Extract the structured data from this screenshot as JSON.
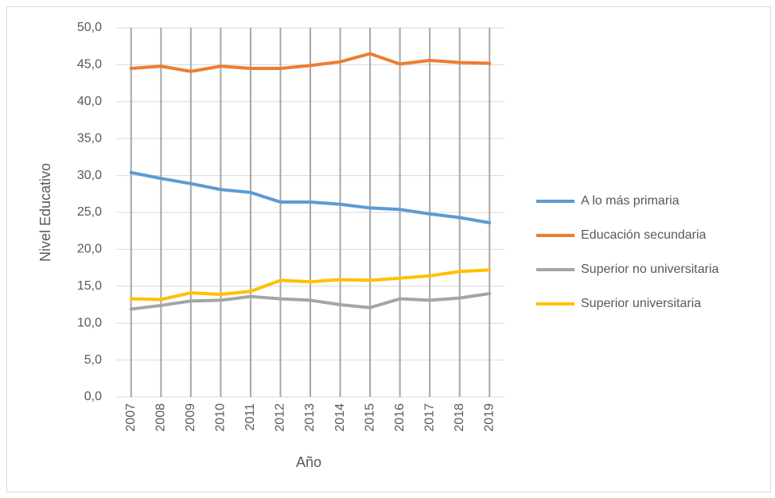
{
  "chart_data": {
    "type": "line",
    "x_label": "Año",
    "y_label": "Nivel Educativo",
    "categories": [
      "2007",
      "2008",
      "2009",
      "2010",
      "2011",
      "2012",
      "2013",
      "2014",
      "2015",
      "2016",
      "2017",
      "2018",
      "2019"
    ],
    "series": [
      {
        "name": "A lo más primaria",
        "color": "#5b9bd5",
        "values": [
          30.4,
          29.6,
          28.9,
          28.1,
          27.7,
          26.4,
          26.4,
          26.1,
          25.6,
          25.4,
          24.8,
          24.3,
          23.6
        ]
      },
      {
        "name": "Educación secundaria",
        "color": "#ed7d31",
        "values": [
          44.5,
          44.8,
          44.1,
          44.8,
          44.5,
          44.5,
          44.9,
          45.4,
          46.5,
          45.1,
          45.6,
          45.3,
          45.2
        ]
      },
      {
        "name": "Superior no universitaria",
        "color": "#a5a5a5",
        "values": [
          11.9,
          12.4,
          13.0,
          13.1,
          13.6,
          13.3,
          13.1,
          12.5,
          12.1,
          13.3,
          13.1,
          13.4,
          14.0
        ]
      },
      {
        "name": "Superior universitaria",
        "color": "#ffc000",
        "values": [
          13.3,
          13.2,
          14.1,
          13.9,
          14.3,
          15.8,
          15.6,
          15.9,
          15.8,
          16.1,
          16.4,
          17.0,
          17.2
        ]
      }
    ],
    "ylim": [
      0,
      50
    ],
    "yticks": [
      {
        "value": 0,
        "label": "0,0"
      },
      {
        "value": 5,
        "label": "5,0"
      },
      {
        "value": 10,
        "label": "10,0"
      },
      {
        "value": 15,
        "label": "15,0"
      },
      {
        "value": 20,
        "label": "20,0"
      },
      {
        "value": 25,
        "label": "25,0"
      },
      {
        "value": 30,
        "label": "30,0"
      },
      {
        "value": 35,
        "label": "35,0"
      },
      {
        "value": 40,
        "label": "40,0"
      },
      {
        "value": 45,
        "label": "45,0"
      },
      {
        "value": 50,
        "label": "50,0"
      }
    ],
    "grid": true,
    "legend": "right"
  }
}
